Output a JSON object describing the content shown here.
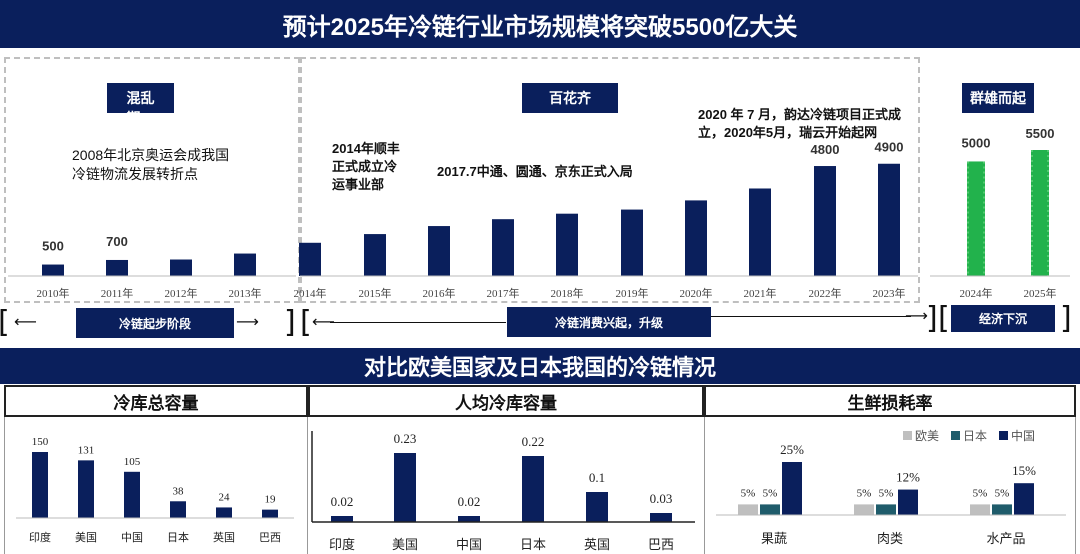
{
  "title": "预计2025年冷链行业市场规模将突破5500亿大关",
  "top_chart": {
    "phases": [
      {
        "label": "混乱\n期"
      },
      {
        "label": "百花齐"
      },
      {
        "label": "群雄而起"
      }
    ],
    "notes": {
      "n2008": "2008年北京奥运会成我国冷链物流发展转折点",
      "n2014": "2014年顺丰正式成立冷运事业部",
      "n2017": "2017.7中通、圆通、京东正式入局",
      "n2020": "2020 年 7 月，韵达冷链项目正式成立，2020年5月，瑞云开始起网"
    },
    "stages": [
      "冷链起步阶段",
      "冷链消费兴起，升级",
      "经济下沉"
    ]
  },
  "bottom_title": "对比欧美国家及日本我国的冷链情况",
  "panels": [
    "冷库总容量",
    "人均冷库容量",
    "生鲜损耗率"
  ],
  "chart_data": [
    {
      "type": "bar",
      "title": "预计2025年冷链行业市场规模将突破5500亿大关",
      "categories": [
        "2010年",
        "2011年",
        "2012年",
        "2013年",
        "2014年",
        "2015年",
        "2016年",
        "2017年",
        "2018年",
        "2019年",
        "2020年",
        "2021年",
        "2022年",
        "2023年",
        "2024年",
        "2025年"
      ],
      "values": [
        500,
        700,
        720,
        980,
        1450,
        1830,
        2180,
        2480,
        2720,
        2900,
        3300,
        3820,
        4800,
        4900,
        5000,
        5500
      ],
      "data_labels": {
        "0": "500",
        "1": "700",
        "12": "4800",
        "13": "4900",
        "14": "5000",
        "15": "5500"
      },
      "colors": {
        "default": "#0a1f5c",
        "forecast": "#22b24c"
      },
      "forecast_from_index": 14,
      "ylim": [
        0,
        5600
      ]
    },
    {
      "type": "bar",
      "title": "冷库总容量",
      "categories": [
        "印度",
        "美国",
        "中国",
        "日本",
        "英国",
        "巴西"
      ],
      "values": [
        150,
        131,
        105,
        38,
        24,
        19
      ],
      "ylim": [
        0,
        160
      ]
    },
    {
      "type": "bar",
      "title": "人均冷库容量",
      "categories": [
        "印度",
        "美国",
        "中国",
        "日本",
        "英国",
        "巴西"
      ],
      "values": [
        0.02,
        0.23,
        0.02,
        0.22,
        0.1,
        0.03
      ],
      "value_labels": [
        "0.02",
        "0.23",
        "0.02",
        "0.22",
        "0.1",
        "0.03"
      ],
      "ylim": [
        0,
        0.25
      ]
    },
    {
      "type": "bar",
      "title": "生鲜损耗率",
      "categories": [
        "果蔬",
        "肉类",
        "水产品"
      ],
      "series": [
        {
          "name": "欧美",
          "values": [
            5,
            5,
            5
          ],
          "color": "#bfbfbf"
        },
        {
          "name": "日本",
          "values": [
            5,
            5,
            5
          ],
          "color": "#1f5c6b"
        },
        {
          "name": "中国",
          "values": [
            25,
            12,
            15
          ],
          "color": "#0a1f5c"
        }
      ],
      "value_labels": [
        "5%",
        "5%",
        "25%",
        "5%",
        "5%",
        "12%",
        "5%",
        "5%",
        "15%"
      ],
      "legend": "top-right",
      "ylim": [
        0,
        30
      ]
    }
  ]
}
